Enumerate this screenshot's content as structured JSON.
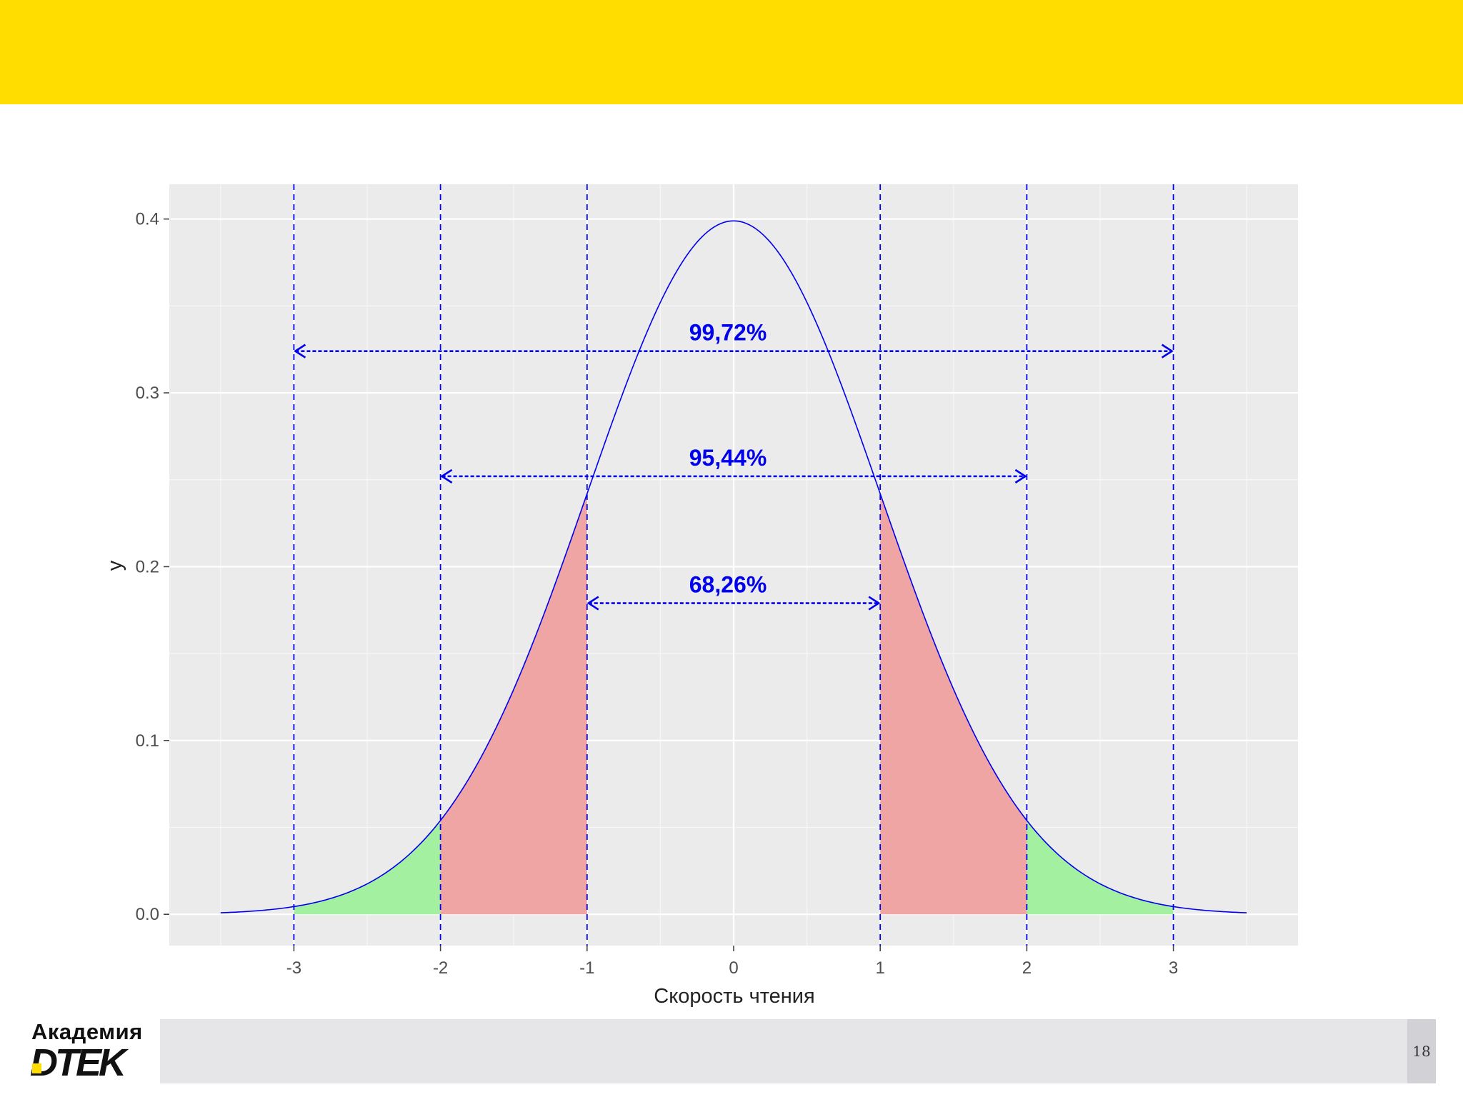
{
  "chart_data": {
    "type": "area",
    "title": "",
    "xlabel": "Скорость чтения",
    "ylabel": "y",
    "xlim": [
      -3.85,
      3.85
    ],
    "ylim": [
      -0.018,
      0.42
    ],
    "x_ticks": [
      -3,
      -2,
      -1,
      0,
      1,
      2,
      3
    ],
    "x_tick_labels": [
      "-3",
      "-2",
      "-1",
      "0",
      "1",
      "2",
      "3"
    ],
    "y_ticks": [
      0.0,
      0.1,
      0.2,
      0.3,
      0.4
    ],
    "y_tick_labels": [
      "0.0",
      "0.1",
      "0.2",
      "0.3",
      "0.4"
    ],
    "grid": true,
    "curve": {
      "distribution": "standard normal density",
      "x_range": [
        -3.5,
        3.5
      ],
      "color": "#0000ee"
    },
    "vertical_lines": [
      -3,
      -2,
      -1,
      1,
      2,
      3
    ],
    "shaded_regions": [
      {
        "from": -3,
        "to": -2,
        "color": "#a3f0a0"
      },
      {
        "from": -2,
        "to": -1,
        "color": "#f0a5a5"
      },
      {
        "from": 1,
        "to": 2,
        "color": "#f0a5a5"
      },
      {
        "from": 2,
        "to": 3,
        "color": "#a3f0a0"
      }
    ],
    "intervals": [
      {
        "from": -3,
        "to": 3,
        "y": 0.324,
        "label": "99,72%"
      },
      {
        "from": -2,
        "to": 2,
        "y": 0.252,
        "label": "95,44%"
      },
      {
        "from": -1,
        "to": 1,
        "y": 0.179,
        "label": "68,26%"
      }
    ]
  },
  "logo": {
    "top": "Академия",
    "bottom": "DTEK"
  },
  "page_number": "18",
  "colors": {
    "banner": "#FFDD00",
    "panel": "#ebebeb",
    "accent": "#0000ee"
  }
}
